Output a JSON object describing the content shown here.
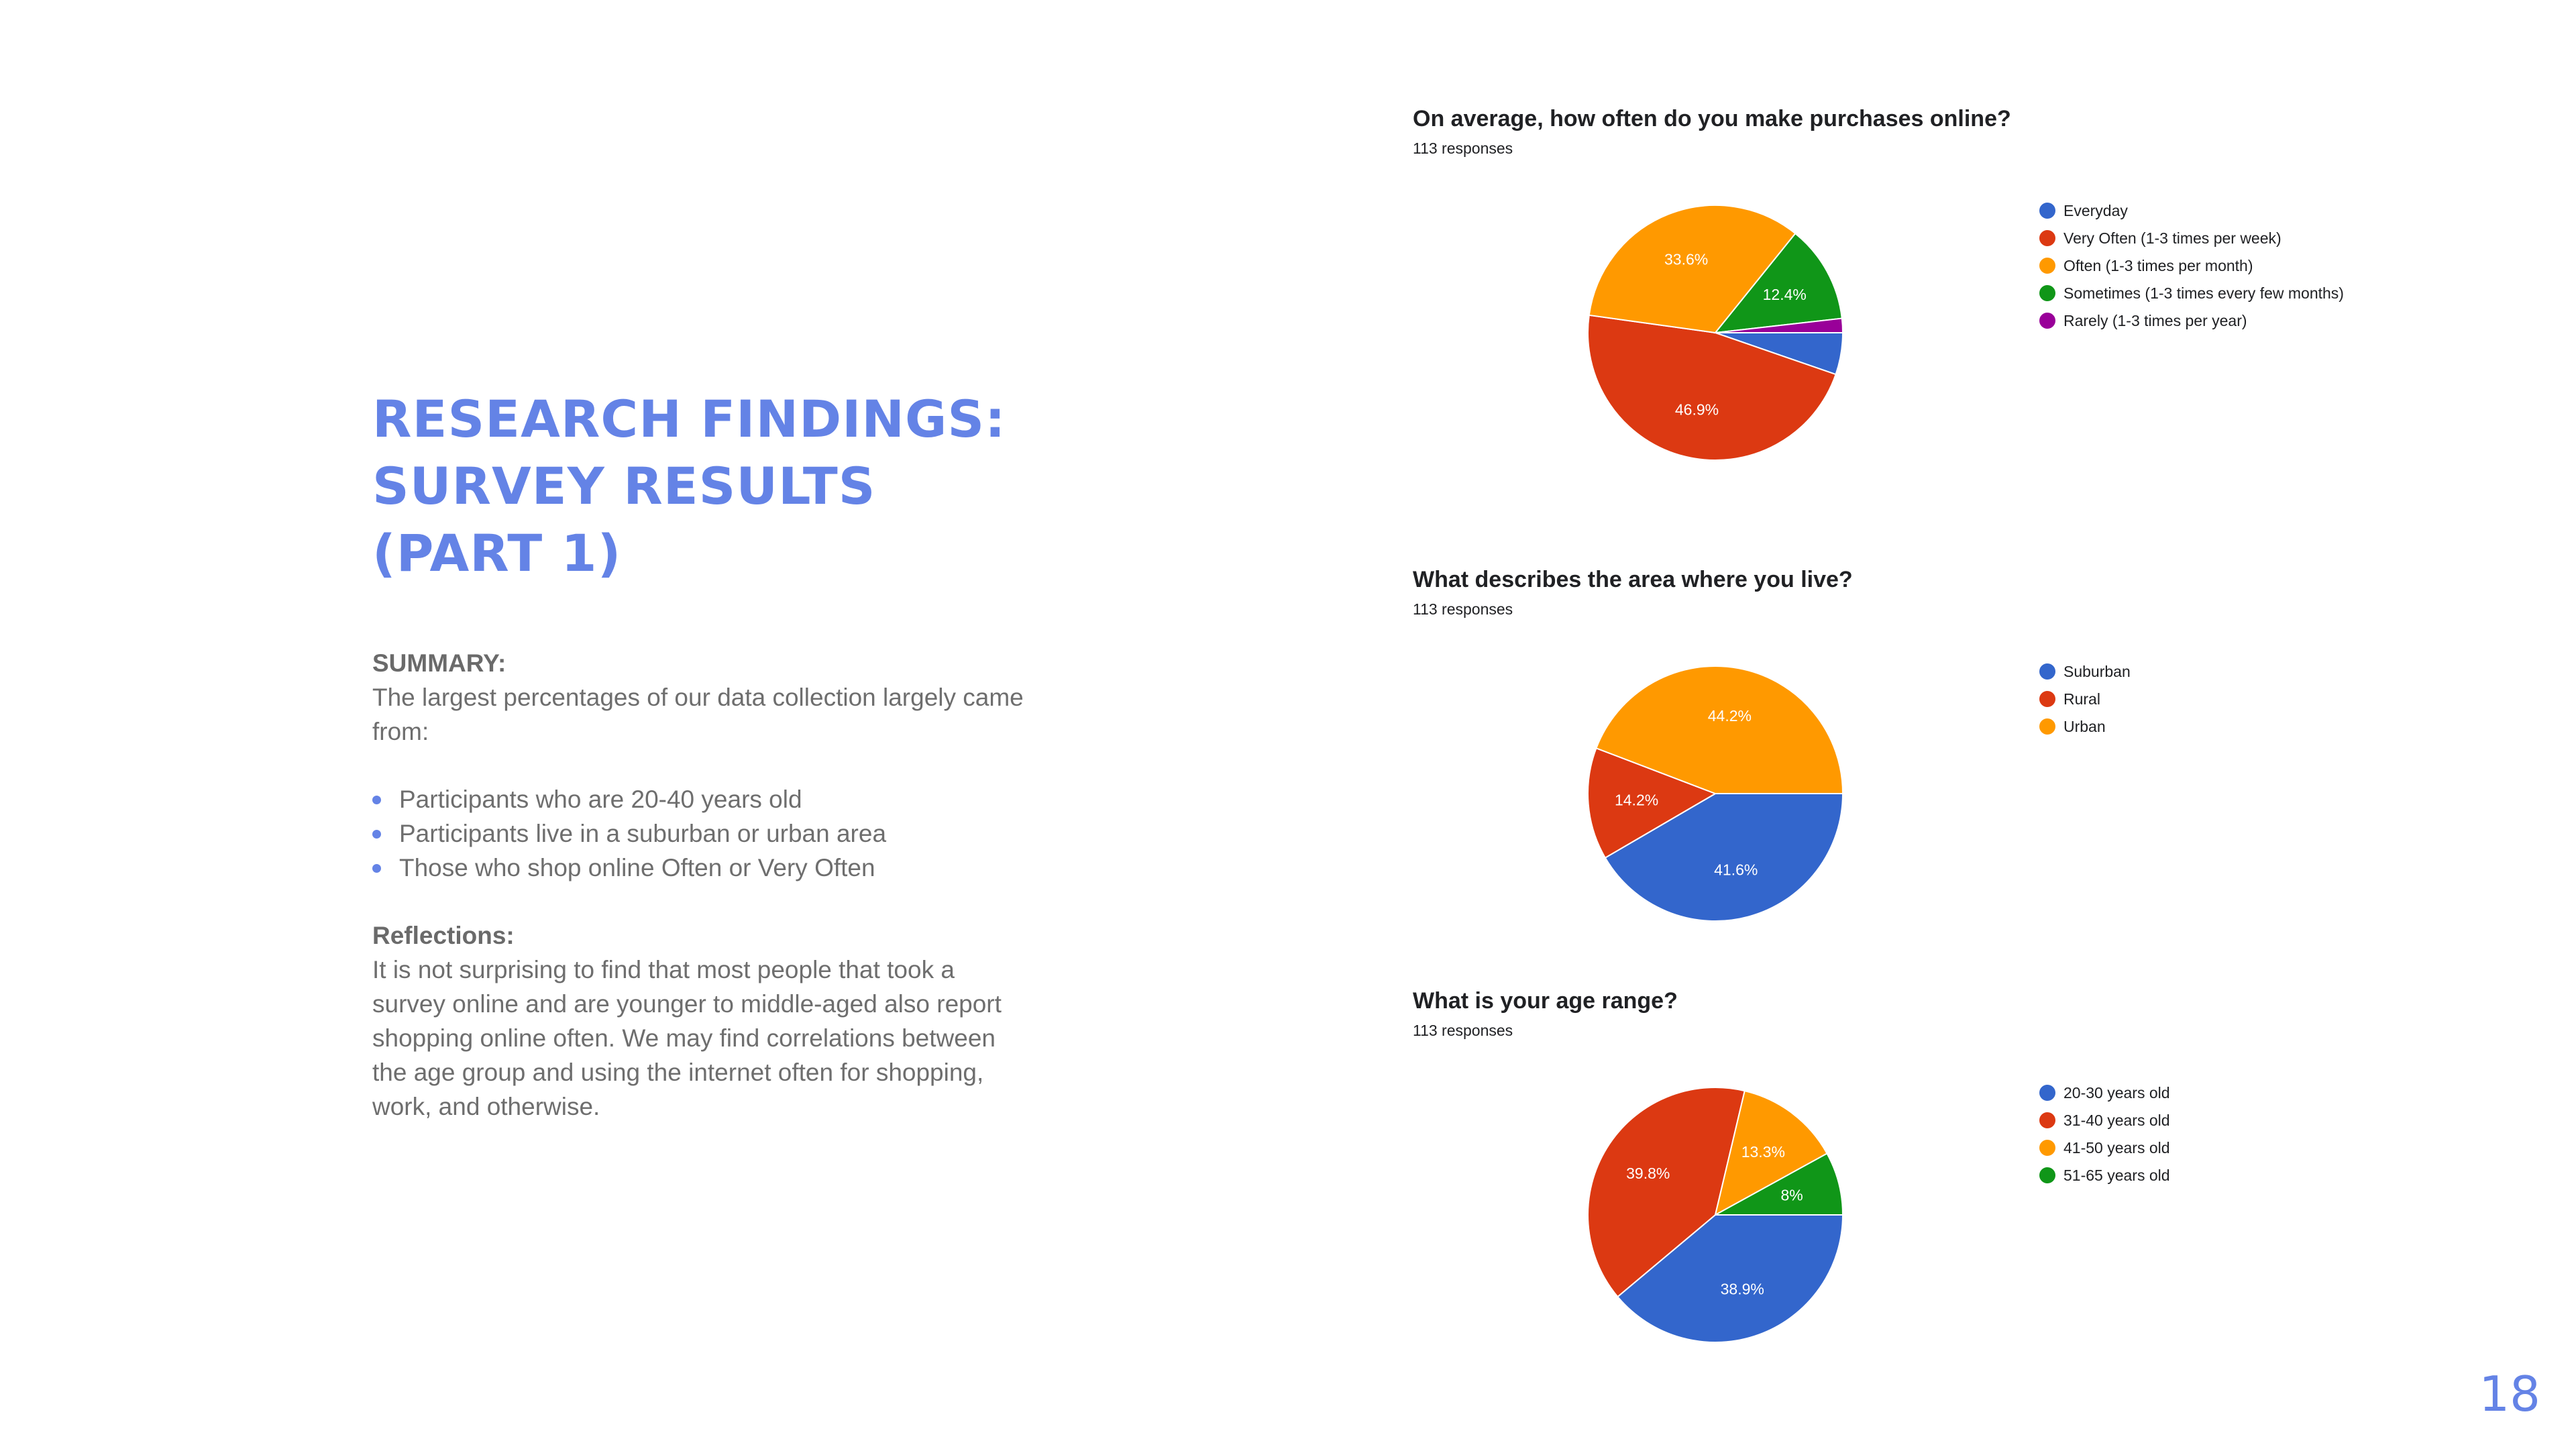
{
  "slide": {
    "title_line1": "RESEARCH FINDINGS:",
    "title_line2": "SURVEY RESULTS (PART 1)",
    "page_number": "18"
  },
  "summary": {
    "heading": "SUMMARY:",
    "text": "The largest percentages of our data collection largely came from:",
    "bullets": [
      "Participants who are 20-40 years old",
      "Participants live in a suburban or urban area",
      "Those who shop online Often or Very Often"
    ]
  },
  "reflections": {
    "heading": "Reflections:",
    "text": "It is not surprising to find that most people that took a survey online and are younger to middle-aged also report shopping online often. We may find correlations between the age group and using the internet often for shopping, work, and otherwise."
  },
  "chart_data": [
    {
      "type": "pie",
      "title": "On average, how often do you make purchases online?",
      "subtitle": "113 responses",
      "categories": [
        "Everyday",
        "Very Often (1-3 times per week)",
        "Often (1-3 times per month)",
        "Sometimes (1-3 times every few months)",
        "Rarely (1-3 times per year)"
      ],
      "values": [
        5.3,
        46.9,
        33.6,
        12.4,
        1.8
      ],
      "data_labels": [
        "",
        "46.9%",
        "33.6%",
        "12.4%",
        ""
      ],
      "colors": [
        "#3366cc",
        "#dc3912",
        "#ff9900",
        "#109618",
        "#990099"
      ],
      "legend_position": "right"
    },
    {
      "type": "pie",
      "title": "What describes the area where you live?",
      "subtitle": "113 responses",
      "categories": [
        "Suburban",
        "Rural",
        "Urban"
      ],
      "values": [
        41.6,
        14.2,
        44.2
      ],
      "data_labels": [
        "41.6%",
        "14.2%",
        "44.2%"
      ],
      "colors": [
        "#3366cc",
        "#dc3912",
        "#ff9900"
      ],
      "legend_position": "right"
    },
    {
      "type": "pie",
      "title": "What is your age range?",
      "subtitle": "113 responses",
      "categories": [
        "20-30 years old",
        "31-40 years old",
        "41-50 years old",
        "51-65 years old"
      ],
      "values": [
        38.9,
        39.8,
        13.3,
        8
      ],
      "data_labels": [
        "38.9%",
        "39.8%",
        "13.3%",
        "8%"
      ],
      "colors": [
        "#3366cc",
        "#dc3912",
        "#ff9900",
        "#109618"
      ],
      "legend_position": "right"
    }
  ]
}
